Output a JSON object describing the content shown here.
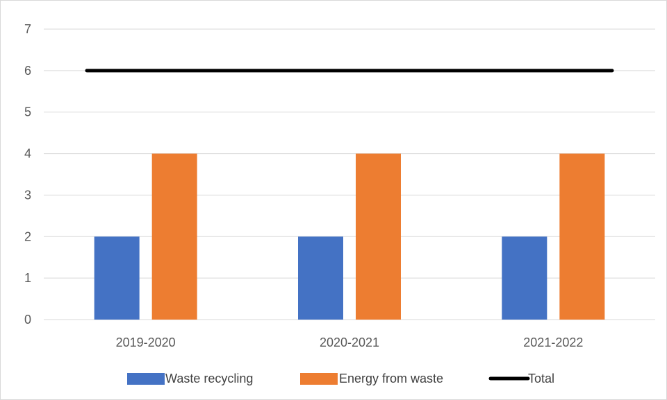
{
  "chart_data": {
    "type": "bar",
    "categories": [
      "2019-2020",
      "2020-2021",
      "2021-2022"
    ],
    "series": [
      {
        "name": "Waste recycling",
        "type": "bar",
        "values": [
          2,
          2,
          2
        ],
        "color": "#4472C4"
      },
      {
        "name": "Energy from waste",
        "type": "bar",
        "values": [
          4,
          4,
          4
        ],
        "color": "#ED7D31"
      },
      {
        "name": "Total",
        "type": "line",
        "values": [
          6,
          6,
          6
        ],
        "color": "#000000"
      }
    ],
    "yticks": [
      "0",
      "1",
      "2",
      "3",
      "4",
      "5",
      "6",
      "7"
    ],
    "ylim": [
      0,
      7
    ],
    "grid": true,
    "legend_position": "bottom",
    "gridline_color": "#d9d9d9",
    "axis_label_color": "#595959"
  }
}
